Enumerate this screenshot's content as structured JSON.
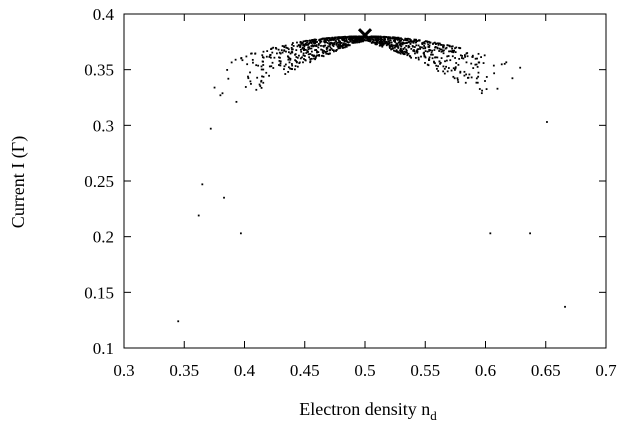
{
  "chart_data": {
    "type": "scatter",
    "title": "",
    "xlabel": "Electron density n",
    "xlabel_sub": "d",
    "ylabel": "Current I (Γ)",
    "xlim": [
      0.3,
      0.7
    ],
    "ylim": [
      0.1,
      0.4
    ],
    "xticks": [
      "0.3",
      "0.35",
      "0.4",
      "0.45",
      "0.5",
      "0.55",
      "0.6",
      "0.65",
      "0.7"
    ],
    "yticks": [
      "0.1",
      "0.15",
      "0.2",
      "0.25",
      "0.3",
      "0.35",
      "0.4"
    ],
    "grid": false,
    "legend": "none",
    "marker_color": "#000000",
    "maximum_marker": {
      "shape": "x-cross",
      "x": 0.5,
      "y": 0.381
    },
    "outliers": [
      {
        "x": 0.345,
        "y": 0.124
      },
      {
        "x": 0.362,
        "y": 0.219
      },
      {
        "x": 0.397,
        "y": 0.203
      },
      {
        "x": 0.604,
        "y": 0.203
      },
      {
        "x": 0.637,
        "y": 0.203
      },
      {
        "x": 0.666,
        "y": 0.137
      },
      {
        "x": 0.651,
        "y": 0.303
      },
      {
        "x": 0.365,
        "y": 0.247
      },
      {
        "x": 0.383,
        "y": 0.235
      },
      {
        "x": 0.38,
        "y": 0.327
      },
      {
        "x": 0.372,
        "y": 0.297
      }
    ],
    "cloud": {
      "description": "Dense cloud of points along a dome-shaped envelope, I ≈ 0.38 − 1.7·(n − 0.5)², spreading below the envelope",
      "n_min": 0.36,
      "n_max": 0.64,
      "peak_x": 0.5,
      "peak_y": 0.38,
      "curvature": 1.7,
      "point_count": 1100
    }
  }
}
